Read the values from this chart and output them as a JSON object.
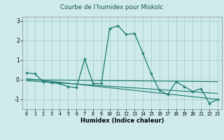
{
  "title": "Courbe de l’humidex pour Miskolc",
  "xlabel": "Humidex (Indice chaleur)",
  "ylabel": "",
  "background_color": "#ceeaea",
  "grid_color": "#aacece",
  "line_color": "#1a7a6e",
  "marker_color": "#1a7a6e",
  "xlim": [
    -0.5,
    23.5
  ],
  "ylim": [
    -1.5,
    3.2
  ],
  "xticks": [
    0,
    1,
    2,
    3,
    4,
    5,
    6,
    7,
    8,
    9,
    10,
    11,
    12,
    13,
    14,
    15,
    16,
    17,
    18,
    19,
    20,
    21,
    22,
    23
  ],
  "yticks": [
    -1,
    0,
    1,
    2,
    3
  ],
  "series1_x": [
    0,
    1,
    2,
    3,
    4,
    5,
    6,
    7,
    8,
    9,
    10,
    11,
    12,
    13,
    14,
    15,
    16,
    17,
    18,
    19,
    20,
    21,
    22,
    23
  ],
  "series1_y": [
    0.35,
    0.3,
    -0.1,
    -0.15,
    -0.2,
    -0.35,
    -0.4,
    1.05,
    -0.2,
    -0.2,
    2.6,
    2.75,
    2.3,
    2.35,
    1.35,
    0.3,
    -0.55,
    -0.75,
    -0.1,
    -0.35,
    -0.6,
    -0.45,
    -1.2,
    -1.0
  ],
  "series2_x": [
    0,
    23
  ],
  "series2_y": [
    0.0,
    -0.1
  ],
  "series3_x": [
    0,
    23
  ],
  "series3_y": [
    -0.05,
    -0.7
  ],
  "series4_x": [
    0,
    23
  ],
  "series4_y": [
    0.05,
    -1.0
  ]
}
